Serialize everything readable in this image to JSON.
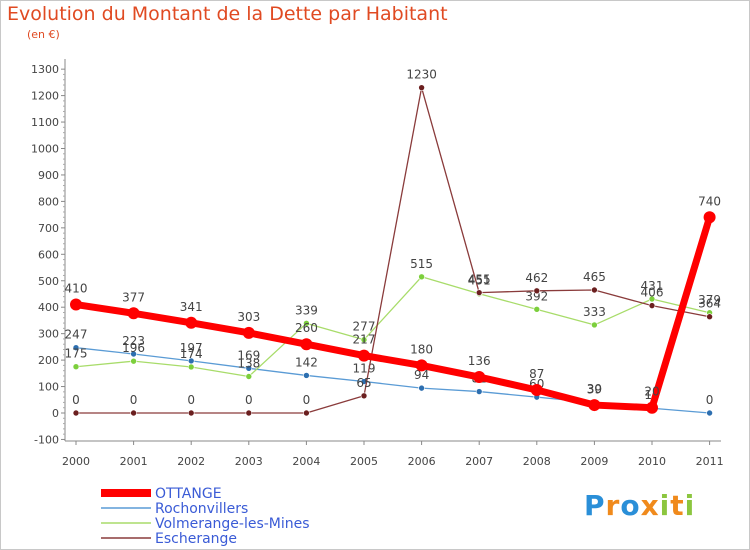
{
  "title": "Evolution du Montant de la Dette par Habitant",
  "subtitle": "(en €)",
  "logo": {
    "text": "Proxiti",
    "letters": [
      {
        "ch": "P",
        "color": "#2a8fd8"
      },
      {
        "ch": "r",
        "color": "#f08a1c"
      },
      {
        "ch": "o",
        "color": "#2a8fd8"
      },
      {
        "ch": "x",
        "color": "#f08a1c"
      },
      {
        "ch": "i",
        "color": "#8cc63f"
      },
      {
        "ch": "t",
        "color": "#f08a1c"
      },
      {
        "ch": "i",
        "color": "#8cc63f"
      }
    ]
  },
  "chart_data": {
    "type": "line",
    "title": "Evolution du Montant de la Dette par Habitant",
    "subtitle": "(en €)",
    "x": [
      "2000",
      "2001",
      "2002",
      "2003",
      "2004",
      "2005",
      "2006",
      "2007",
      "2008",
      "2009",
      "2010",
      "2011"
    ],
    "ylim": [
      -100,
      1300
    ],
    "yticks": [
      -100,
      0,
      100,
      200,
      300,
      400,
      500,
      600,
      700,
      800,
      900,
      1000,
      1100,
      1200,
      1300
    ],
    "grid": false,
    "legend_position": "bottom-left",
    "series": [
      {
        "name": "Rochonvillers",
        "color": "#5a9bd5",
        "marker": "#2d6fb0",
        "width": 1.3,
        "r": 3,
        "values": [
          247,
          223,
          197,
          169,
          142,
          119,
          94,
          81,
          60,
          39,
          18,
          0
        ],
        "labels": [
          "247",
          "223",
          "197",
          "169",
          "142",
          "119",
          "94",
          "81",
          "60",
          "39",
          "18",
          "0"
        ]
      },
      {
        "name": "Volmerange-les-Mines",
        "color": "#a8dc6a",
        "marker": "#7ccf3c",
        "width": 1.3,
        "r": 3,
        "values": [
          175,
          196,
          174,
          138,
          339,
          277,
          515,
          451,
          392,
          333,
          431,
          379
        ],
        "labels": [
          "175",
          "196",
          "174",
          "138",
          "339",
          "277",
          "515",
          "451",
          "392",
          "333",
          "431",
          "379"
        ]
      },
      {
        "name": "Escherange",
        "color": "#8a3b3b",
        "marker": "#6b1f1f",
        "width": 1.3,
        "r": 3,
        "values": [
          0,
          0,
          0,
          0,
          0,
          65,
          1230,
          455,
          462,
          465,
          406,
          364
        ],
        "labels": [
          "0",
          "0",
          "0",
          "0",
          "0",
          "65",
          "1230",
          "455",
          "462",
          "465",
          "406",
          "364"
        ]
      },
      {
        "name": "OTTANGE",
        "color": "#ff0000",
        "marker": "#ff0000",
        "width": 7,
        "r": 6,
        "values": [
          410,
          377,
          341,
          303,
          260,
          217,
          180,
          136,
          87,
          30,
          20,
          740
        ],
        "labels": [
          "410",
          "377",
          "341",
          "303",
          "260",
          "217",
          "180",
          "136",
          "87",
          "30",
          "20",
          "740"
        ]
      }
    ],
    "legend": [
      "OTTANGE",
      "Rochonvillers",
      "Volmerange-les-Mines",
      "Escherange"
    ]
  }
}
